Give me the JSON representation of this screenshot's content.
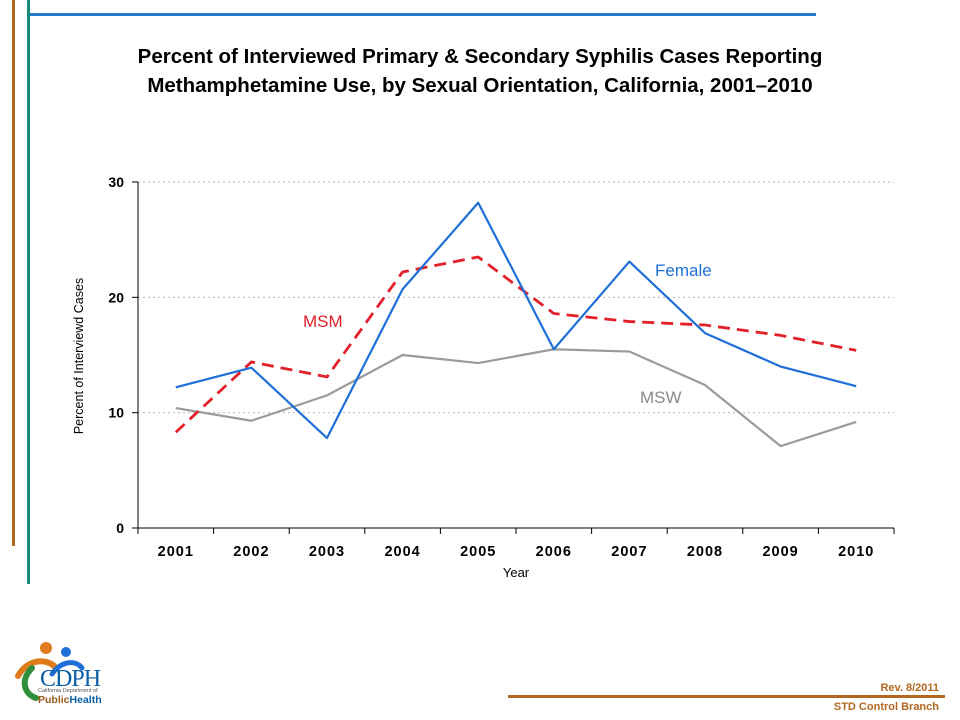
{
  "slide": {
    "title_line1": "Percent of Interviewed Primary & Secondary Syphilis Cases Reporting",
    "title_line2": "Methamphetamine Use, by Sexual Orientation, California, 2001–2010",
    "rev": "Rev. 8/2011",
    "branch": "STD Control Branch",
    "logo": {
      "abbr": "CDPH",
      "sub": "California Department of",
      "org_prefix": "Public",
      "org_suffix": "Health"
    }
  },
  "colors": {
    "female": "#1f6fd8",
    "msm": "#e3202a",
    "msw": "#9a9a9a",
    "accent_orange": "#b3681f",
    "accent_teal": "#1a8a7a",
    "accent_blue": "#2a78c8"
  },
  "chart_data": {
    "type": "line",
    "title": "Percent of Interviewed Primary & Secondary Syphilis Cases Reporting Methamphetamine Use, by Sexual Orientation, California, 2001–2010",
    "xlabel": "Year",
    "ylabel": "Percent of Interviewd Cases",
    "categories": [
      "2001",
      "2002",
      "2003",
      "2004",
      "2005",
      "2006",
      "2007",
      "2008",
      "2009",
      "2010"
    ],
    "ylim": [
      0,
      30
    ],
    "yticks": [
      0,
      10,
      20,
      30
    ],
    "grid": true,
    "series": [
      {
        "name": "Female",
        "style": "solid",
        "values": [
          12.2,
          13.9,
          7.8,
          20.7,
          28.2,
          15.5,
          23.1,
          16.9,
          14.0,
          12.3
        ]
      },
      {
        "name": "MSM",
        "style": "dashed",
        "values": [
          8.3,
          14.4,
          13.1,
          22.2,
          23.5,
          18.6,
          17.9,
          17.6,
          16.7,
          15.4
        ]
      },
      {
        "name": "MSW",
        "style": "solid",
        "values": [
          10.4,
          9.3,
          11.5,
          15.0,
          14.3,
          15.5,
          15.3,
          12.4,
          7.1,
          9.2
        ]
      }
    ]
  }
}
